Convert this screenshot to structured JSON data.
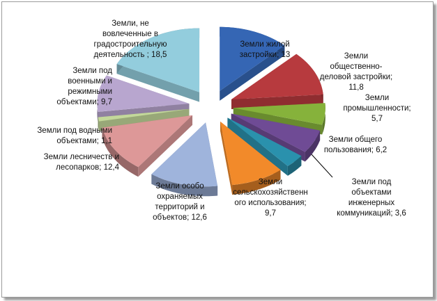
{
  "chart_data": {
    "type": "pie",
    "exploded": true,
    "three_d": true,
    "legend": "none",
    "slices": [
      {
        "label": "Земли жилой\nзастройки; 13",
        "value": 13,
        "color": "#3566b4"
      },
      {
        "label": "Земли\nобщественно-\nделовой  застройки;\n11,8",
        "value": 11.8,
        "color": "#b73a3e"
      },
      {
        "label": "Земли\nпромышленности;\n5,7",
        "value": 5.7,
        "color": "#86b23b"
      },
      {
        "label": "Земли общего\nпользования; 6,2",
        "value": 6.2,
        "color": "#6f4b95"
      },
      {
        "label": "Земли под\nобъектами\nинженерных\nкоммуникаций; 3,6",
        "value": 3.6,
        "color": "#2a91ad"
      },
      {
        "label": "Земли\nсельскохозяйственн\nого использования;\n9,7",
        "value": 9.7,
        "color": "#f28a2a"
      },
      {
        "label": "Земли особо\nохраняемых\nтерриторий и\nобъектов; 12,6",
        "value": 12.6,
        "color": "#9fb4dc"
      },
      {
        "label": "Земли лесничеств и\nлесопарков; 12,4",
        "value": 12.4,
        "color": "#dd9898"
      },
      {
        "label": "Земли под водными\nобъектами; 1,1",
        "value": 1.1,
        "color": "#c3d89a"
      },
      {
        "label": "Земли под\nвоенными и\nрежимными\nобъектами; 9,7",
        "value": 9.7,
        "color": "#b8a6cf"
      },
      {
        "label": "Земли, не\nвовлеченные в\nградостроительную\nдеятельность ; 18,5",
        "value": 18.5,
        "color": "#93cddd"
      }
    ]
  }
}
